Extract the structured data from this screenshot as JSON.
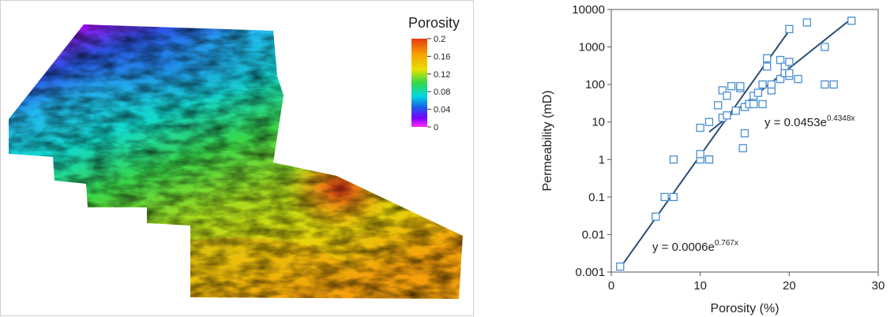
{
  "map": {
    "legend": {
      "title": "Porosity",
      "ticks": [
        "0.2",
        "0.16",
        "0.12",
        "0.08",
        "0.04",
        "0"
      ],
      "colors": [
        "#e83a10",
        "#f7a200",
        "#e7e100",
        "#33d84a",
        "#00d7e0",
        "#1a5ce6",
        "#7a00ff",
        "#ff2dff"
      ]
    },
    "north_arrow_icon": "north-arrow-icon",
    "arrow_color": "#2bc21f"
  },
  "chart_data": {
    "type": "scatter",
    "xlabel": "Porosity (%)",
    "ylabel": "Permeability (mD)",
    "xlim": [
      0,
      30
    ],
    "ylim": [
      0.001,
      10000
    ],
    "yscale": "log",
    "x_ticks": [
      "0",
      "10",
      "20",
      "30"
    ],
    "y_ticks": [
      "0.001",
      "0.01",
      "0.1",
      "1",
      "10",
      "100",
      "1000",
      "10000"
    ],
    "marker_color": "#4a8fd4",
    "line_color": "#2c4d75",
    "points": [
      [
        1,
        0.0014
      ],
      [
        5,
        0.03
      ],
      [
        6,
        0.1
      ],
      [
        7,
        0.1
      ],
      [
        7,
        1
      ],
      [
        10,
        1
      ],
      [
        10,
        1.4
      ],
      [
        10,
        7
      ],
      [
        11,
        1
      ],
      [
        11,
        1
      ],
      [
        11,
        10
      ],
      [
        12,
        28
      ],
      [
        12.5,
        13
      ],
      [
        12.5,
        70
      ],
      [
        13,
        50
      ],
      [
        13,
        15
      ],
      [
        13.5,
        90
      ],
      [
        14,
        20
      ],
      [
        14.5,
        80
      ],
      [
        14.5,
        90
      ],
      [
        14.8,
        2
      ],
      [
        15,
        25
      ],
      [
        15,
        5
      ],
      [
        15.5,
        30
      ],
      [
        16,
        30
      ],
      [
        16,
        50
      ],
      [
        16.5,
        60
      ],
      [
        17,
        30
      ],
      [
        17,
        100
      ],
      [
        17.5,
        300
      ],
      [
        17.5,
        500
      ],
      [
        18,
        70
      ],
      [
        18,
        100
      ],
      [
        19,
        140
      ],
      [
        19,
        450
      ],
      [
        19.5,
        300
      ],
      [
        19.5,
        200
      ],
      [
        20,
        170
      ],
      [
        20,
        200
      ],
      [
        20,
        400
      ],
      [
        20,
        3000
      ],
      [
        21,
        140
      ],
      [
        22,
        4500
      ],
      [
        24,
        100
      ],
      [
        24,
        1000
      ],
      [
        25,
        100
      ],
      [
        27,
        5000
      ]
    ],
    "trendlines": [
      {
        "equation_base": "y = 0.0006e",
        "exponent": "0.767x",
        "a": 0.0006,
        "b": 0.767,
        "x_range": [
          1,
          20
        ]
      },
      {
        "equation_base": "y = 0.0453e",
        "exponent": "0.4348x",
        "a": 0.0453,
        "b": 0.4348,
        "x_range": [
          11,
          27
        ]
      }
    ]
  }
}
